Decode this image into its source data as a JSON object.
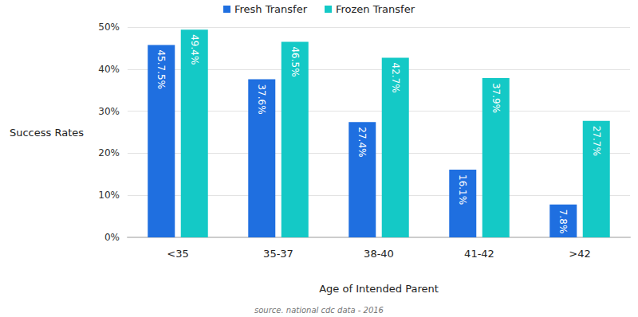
{
  "chart_data": {
    "type": "bar",
    "x_label": "Age of Intended Parent",
    "y_label": "Success Rates",
    "annotations": [
      "source. national cdc data - 2016"
    ],
    "categories": [
      "<35",
      "35-37",
      "38-40",
      "41-42",
      ">42"
    ],
    "series": [
      {
        "name": "Fresh Transfer",
        "color": "#1f6fe0",
        "values": [
          45.75,
          37.6,
          27.4,
          16.1,
          7.8
        ],
        "value_labels": [
          "45.7.5%",
          "37.6%",
          "27.4%",
          "16.1%",
          "7.8%"
        ]
      },
      {
        "name": "Frozen Transfer",
        "color": "#14c9c6",
        "values": [
          49.4,
          46.5,
          42.7,
          37.9,
          27.7
        ],
        "value_labels": [
          "49.4%",
          "46.5%",
          "42.7%",
          "37.9%",
          "27.7%"
        ]
      }
    ],
    "ylim": [
      0,
      50
    ],
    "yticks": [
      {
        "value": 0,
        "label": "0%"
      },
      {
        "value": 10,
        "label": "10%"
      },
      {
        "value": 20,
        "label": "20%"
      },
      {
        "value": 30,
        "label": "30%"
      },
      {
        "value": 40,
        "label": "40%"
      },
      {
        "value": 50,
        "label": "50%"
      }
    ],
    "grid": true,
    "legend": "top",
    "data_labels": true
  }
}
